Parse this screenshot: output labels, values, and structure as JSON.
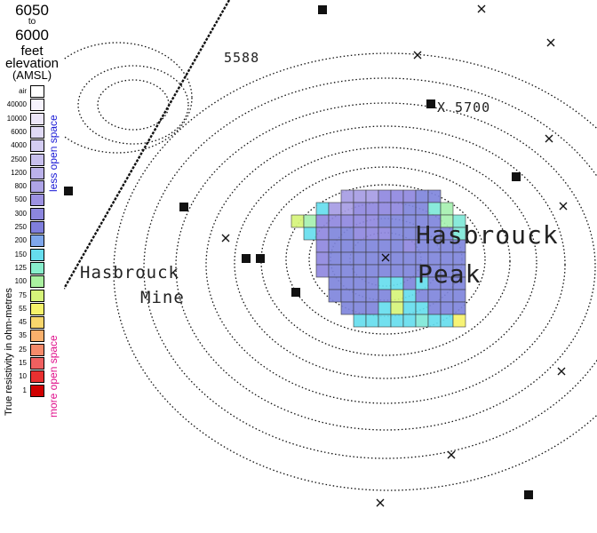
{
  "legend": {
    "range_top": "6050",
    "range_to": "to",
    "range_bottom": "6000",
    "unit": "feet",
    "elevation": "elevation",
    "datum": "(AMSL)",
    "axis_title": "True resistivity in ohm-metres",
    "upper_note": "less open space",
    "lower_note": "more open space",
    "upper_note_color": "#1a1ad6",
    "lower_note_color": "#e0108c",
    "scale": [
      {
        "label": "air",
        "color": "#ffffff"
      },
      {
        "label": "40000",
        "color": "#f6f2fc"
      },
      {
        "label": "10000",
        "color": "#ece6f8"
      },
      {
        "label": "6000",
        "color": "#e0daf5"
      },
      {
        "label": "4000",
        "color": "#d4cdf2"
      },
      {
        "label": "2500",
        "color": "#c8c0ee"
      },
      {
        "label": "1200",
        "color": "#bbb2ea"
      },
      {
        "label": "800",
        "color": "#aea4e6"
      },
      {
        "label": "500",
        "color": "#9d92e2"
      },
      {
        "label": "300",
        "color": "#8c86de"
      },
      {
        "label": "250",
        "color": "#7f7edc"
      },
      {
        "label": "200",
        "color": "#7fa7ec"
      },
      {
        "label": "150",
        "color": "#66ddee"
      },
      {
        "label": "125",
        "color": "#88eecc"
      },
      {
        "label": "100",
        "color": "#aaf0a0"
      },
      {
        "label": "75",
        "color": "#d6f47a"
      },
      {
        "label": "55",
        "color": "#f6f26a"
      },
      {
        "label": "45",
        "color": "#f8d66c"
      },
      {
        "label": "35",
        "color": "#f8b06c"
      },
      {
        "label": "25",
        "color": "#f68a6a"
      },
      {
        "label": "15",
        "color": "#f06060"
      },
      {
        "label": "10",
        "color": "#e83030"
      },
      {
        "label": "1",
        "color": "#d00000"
      }
    ]
  },
  "map": {
    "labels": {
      "peak_1": "Hasbrouck",
      "peak_2": "Peak",
      "mine_1": "Hasbrouck",
      "mine_2": "Mine",
      "spot_1": "5588",
      "spot_2": "X 5700"
    },
    "grid_colors": {
      "lavender": "#a69ce4",
      "purple": "#8f88e0",
      "blue": "#7f85dc",
      "cyan": "#66ddee",
      "aqua": "#7fe8d8",
      "mint": "#a6f0b0",
      "lime": "#d6f47a",
      "yellow": "#f6f26a"
    }
  }
}
